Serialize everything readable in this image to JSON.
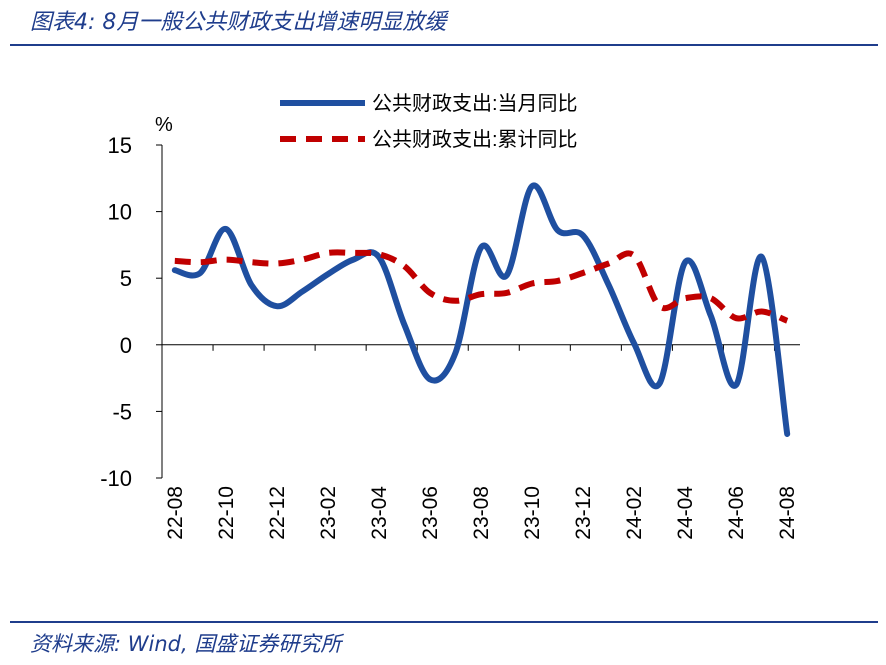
{
  "header": {
    "title": "图表4:  8月一般公共财政支出增速明显放缓"
  },
  "footer": {
    "source": "资料来源: Wind, 国盛证券研究所"
  },
  "colors": {
    "brand": "#1f3d8c",
    "monthly": "#1f4fa0",
    "cumulative": "#c00000"
  },
  "chart_data": {
    "type": "line",
    "ylabel": "%",
    "ylim": [
      -10,
      15
    ],
    "yticks": [
      "15",
      "10",
      "5",
      "0",
      "-5",
      "-10"
    ],
    "xtick_labels": [
      "22-08",
      "22-10",
      "22-12",
      "23-02",
      "23-04",
      "23-06",
      "23-08",
      "23-10",
      "23-12",
      "24-02",
      "24-04",
      "24-06",
      "24-08"
    ],
    "x": [
      "22-08",
      "22-09",
      "22-10",
      "22-11",
      "22-12",
      "23-01",
      "23-02",
      "23-03",
      "23-04",
      "23-05",
      "23-06",
      "23-07",
      "23-08",
      "23-09",
      "23-10",
      "23-11",
      "23-12",
      "24-01",
      "24-02",
      "24-03",
      "24-04",
      "24-05",
      "24-06",
      "24-07",
      "24-08"
    ],
    "grid": false,
    "legend_position": "top",
    "series": [
      {
        "name": "公共财政支出:当月同比",
        "style": "solid",
        "values": [
          5.6,
          5.4,
          8.7,
          4.5,
          2.9,
          4.0,
          5.3,
          6.4,
          6.6,
          1.5,
          -2.6,
          -0.6,
          7.3,
          5.2,
          11.9,
          8.6,
          8.2,
          4.5,
          0.1,
          -2.9,
          6.2,
          2.2,
          -3.0,
          6.6,
          -6.7
        ]
      },
      {
        "name": "公共财政支出:累计同比",
        "style": "dashed",
        "values": [
          6.3,
          6.2,
          6.4,
          6.2,
          6.1,
          6.4,
          6.9,
          6.9,
          6.8,
          5.9,
          3.9,
          3.3,
          3.8,
          3.9,
          4.6,
          4.8,
          5.4,
          6.1,
          6.7,
          2.9,
          3.5,
          3.5,
          2.0,
          2.5,
          1.8
        ]
      }
    ]
  }
}
